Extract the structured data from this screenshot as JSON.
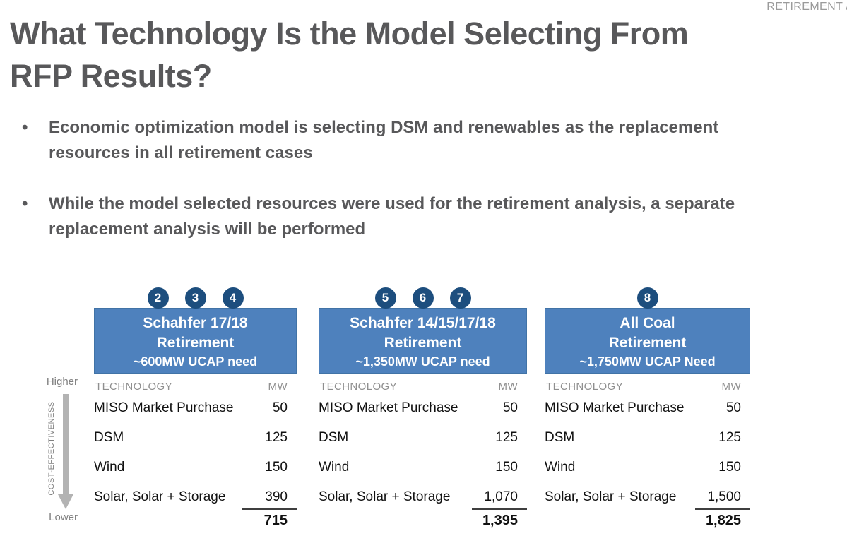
{
  "kicker": "RETIREMENT A",
  "title": {
    "line1": "What Technology Is the Model Selecting From",
    "line2": "RFP Results?"
  },
  "bullets": [
    "Economic optimization model is selecting DSM and renewables as the replacement resources in all retirement cases",
    "While the model selected resources were used for the retirement analysis, a separate replacement analysis will be performed"
  ],
  "axis": {
    "top_label": "Higher",
    "bottom_label": "Lower",
    "arrow_label": "COST-EFFECTIVENESS"
  },
  "table": {
    "col_tech": "TECHNOLOGY",
    "col_mw": "MW"
  },
  "colors": {
    "header_blue": "#4e81bd",
    "badge_navy": "#1d4e7e",
    "title_gray": "#58585a",
    "muted_gray": "#8f8f8f",
    "arrow_gray": "#b3b3b3"
  },
  "scenarios": [
    {
      "badges": [
        "2",
        "3",
        "4"
      ],
      "title_line1": "Schahfer 17/18",
      "title_line2": "Retirement",
      "subtitle": "~600MW UCAP need",
      "rows": [
        {
          "tech": "MISO Market Purchase",
          "mw": "50"
        },
        {
          "tech": "DSM",
          "mw": "125"
        },
        {
          "tech": "Wind",
          "mw": "150"
        },
        {
          "tech": "Solar, Solar + Storage",
          "mw": "390"
        }
      ],
      "total": "715"
    },
    {
      "badges": [
        "5",
        "6",
        "7"
      ],
      "title_line1": "Schahfer 14/15/17/18",
      "title_line2": "Retirement",
      "subtitle": "~1,350MW UCAP need",
      "rows": [
        {
          "tech": "MISO Market Purchase",
          "mw": "50"
        },
        {
          "tech": "DSM",
          "mw": "125"
        },
        {
          "tech": "Wind",
          "mw": "150"
        },
        {
          "tech": "Solar, Solar + Storage",
          "mw": "1,070"
        }
      ],
      "total": "1,395"
    },
    {
      "badges": [
        "8"
      ],
      "title_line1": "All Coal",
      "title_line2": "Retirement",
      "subtitle": "~1,750MW UCAP Need",
      "rows": [
        {
          "tech": "MISO Market Purchase",
          "mw": "50"
        },
        {
          "tech": "DSM",
          "mw": "125"
        },
        {
          "tech": "Wind",
          "mw": "150"
        },
        {
          "tech": "Solar, Solar + Storage",
          "mw": "1,500"
        }
      ],
      "total": "1,825"
    }
  ]
}
